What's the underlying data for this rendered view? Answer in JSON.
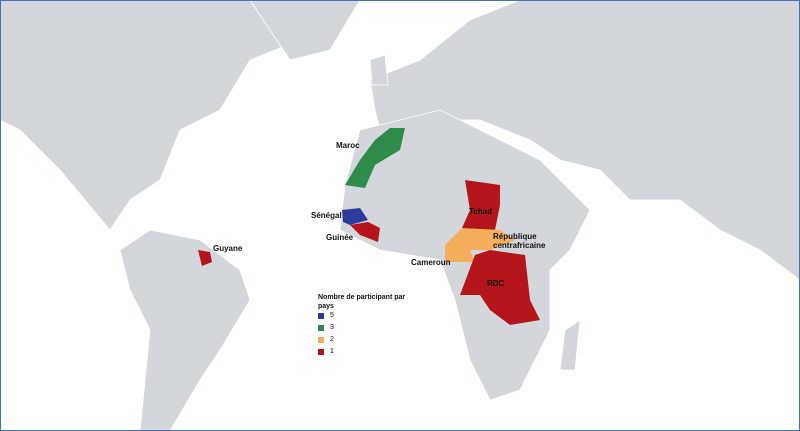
{
  "legend": {
    "title": "Nombre de participant par pays",
    "items": [
      {
        "value": 5,
        "color": "#2a3b9a"
      },
      {
        "value": 3,
        "color": "#2e8b4a"
      },
      {
        "value": 2,
        "color": "#f5ae5b"
      },
      {
        "value": 1,
        "color": "#b3151b"
      }
    ]
  },
  "countries": [
    {
      "name": "Maroc",
      "color": "#2e8b4a"
    },
    {
      "name": "Sénégal",
      "color": "#2a3b9a"
    },
    {
      "name": "Guinée",
      "color": "#b3151b"
    },
    {
      "name": "Guyane",
      "color": "#b3151b"
    },
    {
      "name": "Tchad",
      "color": "#b3151b"
    },
    {
      "name": "République centrafricaine",
      "color": "#f5ae5b"
    },
    {
      "name": "Cameroun",
      "color": "#f5ae5b"
    },
    {
      "name": "RDC",
      "color": "#b3151b"
    }
  ]
}
